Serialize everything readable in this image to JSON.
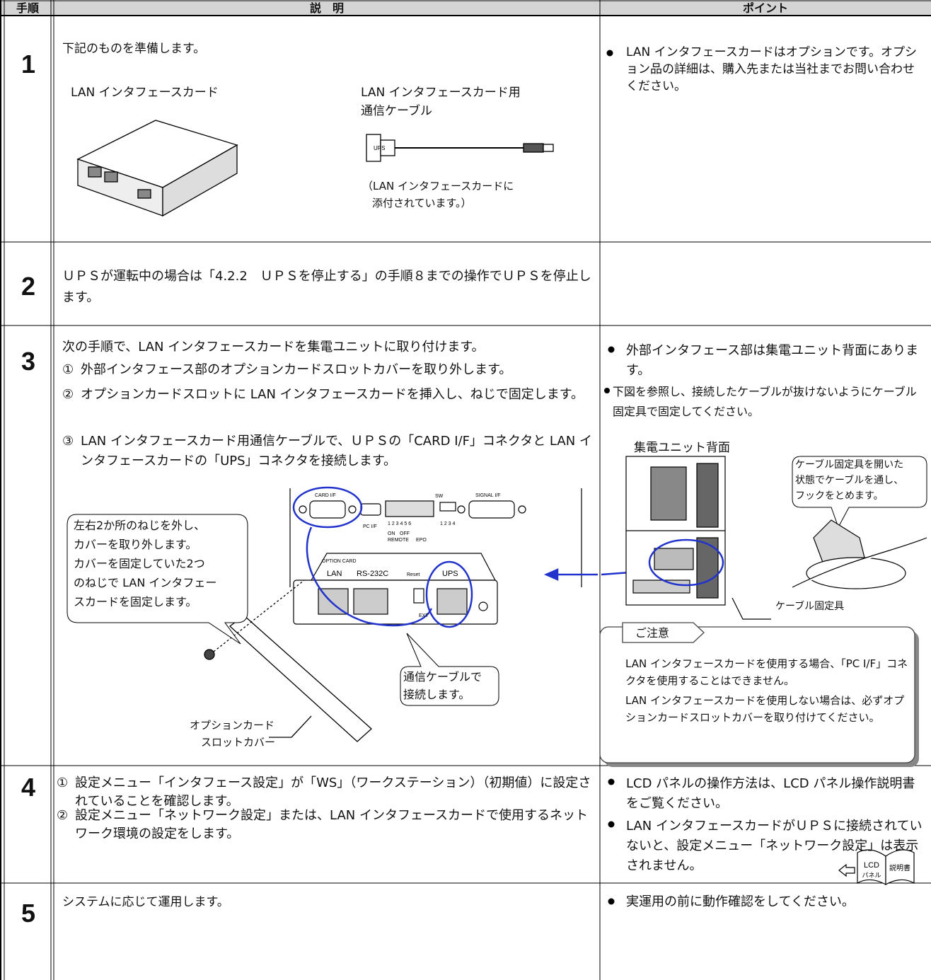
{
  "header": {
    "step": "手順",
    "description": "説　明",
    "point": "ポイント"
  },
  "steps": [
    {
      "number": "1",
      "description": "下記のものを準備します。",
      "figure": {
        "card_label": "LAN インタフェースカード",
        "cable_label": [
          "LAN インタフェースカード用",
          "通信ケーブル"
        ],
        "cable_connector": "UPS",
        "cable_note": [
          "（LAN インタフェースカードに",
          "添付されています。）"
        ]
      },
      "points": [
        "LAN インタフェースカードはオプションです。オプション品の詳細は、購入先または当社までお問い合わせください。"
      ]
    },
    {
      "number": "2",
      "description": "ＵＰＳが運転中の場合は「4.2.2　ＵＰＳを停止する」の手順８までの操作でＵＰＳを停止します。"
    },
    {
      "number": "3",
      "description": "次の手順で、LAN インタフェースカードを集電ユニットに取り付けます。",
      "items": [
        {
          "marker": "①",
          "text": "外部インタフェース部のオプションカードスロットカバーを取り外します。"
        },
        {
          "marker": "②",
          "text": "オプションカードスロットに LAN インタフェースカードを挿入し、ねじで固定します。"
        },
        {
          "marker": "③",
          "text": "LAN インタフェースカード用通信ケーブルで、ＵＰＳの「CARD I/F」コネクタと LAN インタフェースカードの「UPS」コネクタを接続します。"
        }
      ],
      "figure": {
        "callout_screws": [
          "左右2か所のねじを外し、",
          "カバーを取り外します。",
          "カバーを固定していた2つ",
          "のねじで LAN インタフェー",
          "スカードを固定します。"
        ],
        "callout_cable": [
          "通信ケーブルで",
          "接続します。"
        ],
        "cover_label": [
          "オプションカード",
          "スロットカバー"
        ],
        "panel_labels": {
          "card_if": "CARD I/F",
          "pc_if": "PC I/F",
          "sw": "SW",
          "signal_if": "SIGNAL I/F",
          "option_card": "OPTION CARD",
          "switch_numbers": "1 2 3 4 5 6",
          "sw_numbers": "1 2 3 4",
          "on": "ON",
          "off": "OFF",
          "remote": "REMOTE",
          "epo": "EPO",
          "lan": "LAN",
          "rs232c": "RS-232C",
          "reset": "Reset",
          "ups": "UPS",
          "ext": "EXT"
        }
      },
      "points": [
        "外部インタフェース部は集電ユニット背面にあります。",
        "下図を参照し、接続したケーブルが抜けないようにケーブル固定具で固定してください。"
      ],
      "point_figure": {
        "title": "集電ユニット背面",
        "callout": [
          "ケーブル固定具を開いた",
          "状態でケーブルを通し、",
          "フックをとめます。"
        ],
        "fixture_label": "ケーブル固定具"
      },
      "caution": {
        "title": "ご注意",
        "items": [
          "LAN インタフェースカードを使用する場合、「PC I/F」コネクタを使用することはできません。",
          "LAN インタフェースカードを使用しない場合は、必ずオプションカードスロットカバーを取り付けてください。"
        ]
      }
    },
    {
      "number": "4",
      "items": [
        {
          "marker": "①",
          "text": "設定メニュー「インタフェース設定」が「WS」（ワークステーション）（初期値）に設定されていることを確認します。"
        },
        {
          "marker": "②",
          "text": "設定メニュー「ネットワーク設定」または、LAN インタフェースカードで使用するネットワーク環境の設定をします。"
        }
      ],
      "points": [
        "LCD パネルの操作方法は、LCD パネル操作説明書をご覧ください。",
        "LAN インタフェースカードがＵＰＳに接続されていないと、設定メニュー「ネットワーク設定」は表示されません。"
      ],
      "book": {
        "lcd": "LCD",
        "panel": "パネル",
        "manual": "説明書"
      }
    },
    {
      "number": "5",
      "description": "システムに応じて運用します。",
      "points": [
        "実運用の前に動作確認をしてください。"
      ]
    }
  ]
}
